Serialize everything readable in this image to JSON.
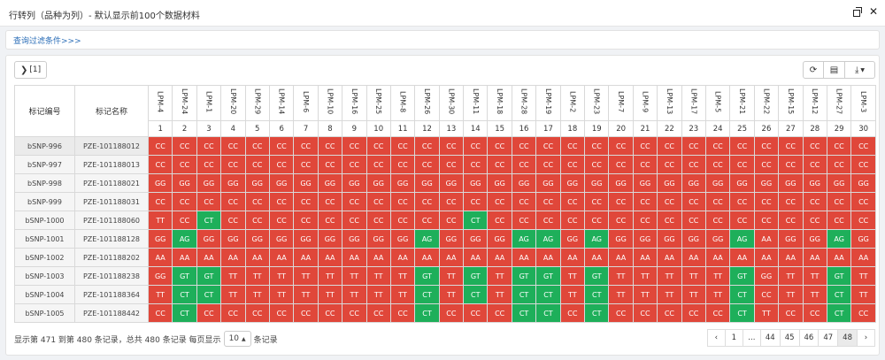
{
  "title": "行转列（品种为列）- 默认显示前100个数据材料",
  "filter_link": "查询过滤条件>>>",
  "toolbar": {
    "toggle_label": "[1]"
  },
  "table": {
    "header_marker": "标记编号",
    "header_name": "标记名称",
    "varieties": [
      "LPM-4",
      "LPM-24",
      "LPM-1",
      "LPM-20",
      "LPM-29",
      "LPM-14",
      "LPM-6",
      "LPM-10",
      "LPM-16",
      "LPM-25",
      "LPM-8",
      "LPM-26",
      "LPM-30",
      "LPM-11",
      "LPM-18",
      "LPM-28",
      "LPM-19",
      "LPM-2",
      "LPM-23",
      "LPM-7",
      "LPM-9",
      "LPM-13",
      "LPM-17",
      "LPM-5",
      "LPM-21",
      "LPM-22",
      "LPM-15",
      "LPM-12",
      "LPM-27",
      "LPM-3"
    ],
    "numbers": [
      "1",
      "2",
      "3",
      "4",
      "5",
      "6",
      "7",
      "8",
      "9",
      "10",
      "11",
      "12",
      "13",
      "14",
      "15",
      "16",
      "17",
      "18",
      "19",
      "20",
      "21",
      "22",
      "23",
      "24",
      "25",
      "26",
      "27",
      "28",
      "29",
      "30"
    ],
    "rows": [
      {
        "marker": "bSNP-996",
        "name": "PZE-101188012",
        "cells": [
          "CC",
          "CC",
          "CC",
          "CC",
          "CC",
          "CC",
          "CC",
          "CC",
          "CC",
          "CC",
          "CC",
          "CC",
          "CC",
          "CC",
          "CC",
          "CC",
          "CC",
          "CC",
          "CC",
          "CC",
          "CC",
          "CC",
          "CC",
          "CC",
          "CC",
          "CC",
          "CC",
          "CC",
          "CC",
          "CC"
        ],
        "green": []
      },
      {
        "marker": "bSNP-997",
        "name": "PZE-101188013",
        "cells": [
          "CC",
          "CC",
          "CC",
          "CC",
          "CC",
          "CC",
          "CC",
          "CC",
          "CC",
          "CC",
          "CC",
          "CC",
          "CC",
          "CC",
          "CC",
          "CC",
          "CC",
          "CC",
          "CC",
          "CC",
          "CC",
          "CC",
          "CC",
          "CC",
          "CC",
          "CC",
          "CC",
          "CC",
          "CC",
          "CC"
        ],
        "green": []
      },
      {
        "marker": "bSNP-998",
        "name": "PZE-101188021",
        "cells": [
          "GG",
          "GG",
          "GG",
          "GG",
          "GG",
          "GG",
          "GG",
          "GG",
          "GG",
          "GG",
          "GG",
          "GG",
          "GG",
          "GG",
          "GG",
          "GG",
          "GG",
          "GG",
          "GG",
          "GG",
          "GG",
          "GG",
          "GG",
          "GG",
          "GG",
          "GG",
          "GG",
          "GG",
          "GG",
          "GG"
        ],
        "green": []
      },
      {
        "marker": "bSNP-999",
        "name": "PZE-101188031",
        "cells": [
          "CC",
          "CC",
          "CC",
          "CC",
          "CC",
          "CC",
          "CC",
          "CC",
          "CC",
          "CC",
          "CC",
          "CC",
          "CC",
          "CC",
          "CC",
          "CC",
          "CC",
          "CC",
          "CC",
          "CC",
          "CC",
          "CC",
          "CC",
          "CC",
          "CC",
          "CC",
          "CC",
          "CC",
          "CC",
          "CC"
        ],
        "green": []
      },
      {
        "marker": "bSNP-1000",
        "name": "PZE-101188060",
        "cells": [
          "TT",
          "CC",
          "CT",
          "CC",
          "CC",
          "CC",
          "CC",
          "CC",
          "CC",
          "CC",
          "CC",
          "CC",
          "CC",
          "CT",
          "CC",
          "CC",
          "CC",
          "CC",
          "CC",
          "CC",
          "CC",
          "CC",
          "CC",
          "CC",
          "CC",
          "CC",
          "CC",
          "CC",
          "CC",
          "CC"
        ],
        "green": [
          2,
          13
        ]
      },
      {
        "marker": "bSNP-1001",
        "name": "PZE-101188128",
        "cells": [
          "GG",
          "AG",
          "GG",
          "GG",
          "GG",
          "GG",
          "GG",
          "GG",
          "GG",
          "GG",
          "GG",
          "AG",
          "GG",
          "GG",
          "GG",
          "AG",
          "AG",
          "GG",
          "AG",
          "GG",
          "GG",
          "GG",
          "GG",
          "GG",
          "AG",
          "AA",
          "GG",
          "GG",
          "AG",
          "GG"
        ],
        "green": [
          1,
          11,
          15,
          16,
          18,
          24,
          28
        ]
      },
      {
        "marker": "bSNP-1002",
        "name": "PZE-101188202",
        "cells": [
          "AA",
          "AA",
          "AA",
          "AA",
          "AA",
          "AA",
          "AA",
          "AA",
          "AA",
          "AA",
          "AA",
          "AA",
          "AA",
          "AA",
          "AA",
          "AA",
          "AA",
          "AA",
          "AA",
          "AA",
          "AA",
          "AA",
          "AA",
          "AA",
          "AA",
          "AA",
          "AA",
          "AA",
          "AA",
          "AA"
        ],
        "green": []
      },
      {
        "marker": "bSNP-1003",
        "name": "PZE-101188238",
        "cells": [
          "GG",
          "GT",
          "GT",
          "TT",
          "TT",
          "TT",
          "TT",
          "TT",
          "TT",
          "TT",
          "TT",
          "GT",
          "TT",
          "GT",
          "TT",
          "GT",
          "GT",
          "TT",
          "GT",
          "TT",
          "TT",
          "TT",
          "TT",
          "TT",
          "GT",
          "GG",
          "TT",
          "TT",
          "GT",
          "TT"
        ],
        "green": [
          1,
          2,
          11,
          13,
          15,
          16,
          18,
          24,
          28
        ]
      },
      {
        "marker": "bSNP-1004",
        "name": "PZE-101188364",
        "cells": [
          "TT",
          "CT",
          "CT",
          "TT",
          "TT",
          "TT",
          "TT",
          "TT",
          "TT",
          "TT",
          "TT",
          "CT",
          "TT",
          "CT",
          "TT",
          "CT",
          "CT",
          "TT",
          "CT",
          "TT",
          "TT",
          "TT",
          "TT",
          "TT",
          "CT",
          "CC",
          "TT",
          "TT",
          "CT",
          "TT"
        ],
        "green": [
          1,
          2,
          11,
          13,
          15,
          16,
          18,
          24,
          28
        ]
      },
      {
        "marker": "bSNP-1005",
        "name": "PZE-101188442",
        "cells": [
          "CC",
          "CT",
          "CC",
          "CC",
          "CC",
          "CC",
          "CC",
          "CC",
          "CC",
          "CC",
          "CC",
          "CT",
          "CC",
          "CC",
          "CC",
          "CT",
          "CT",
          "CC",
          "CT",
          "CC",
          "CC",
          "CC",
          "CC",
          "CC",
          "CT",
          "TT",
          "CC",
          "CC",
          "CT",
          "CC"
        ],
        "green": [
          1,
          11,
          15,
          16,
          18,
          24,
          28
        ]
      }
    ]
  },
  "footer": {
    "summary_prefix": "显示第 471 到第 480 条记录，总共 480 条记录  每页显示",
    "page_size": "10",
    "summary_suffix": "条记录"
  },
  "pager": {
    "prev": "‹",
    "first": "1",
    "ellipsis": "...",
    "pages": [
      "44",
      "45",
      "46",
      "47",
      "48"
    ],
    "active": "48",
    "next": "›"
  },
  "colors": {
    "red": "#e0473a",
    "green": "#1eaf5a"
  }
}
